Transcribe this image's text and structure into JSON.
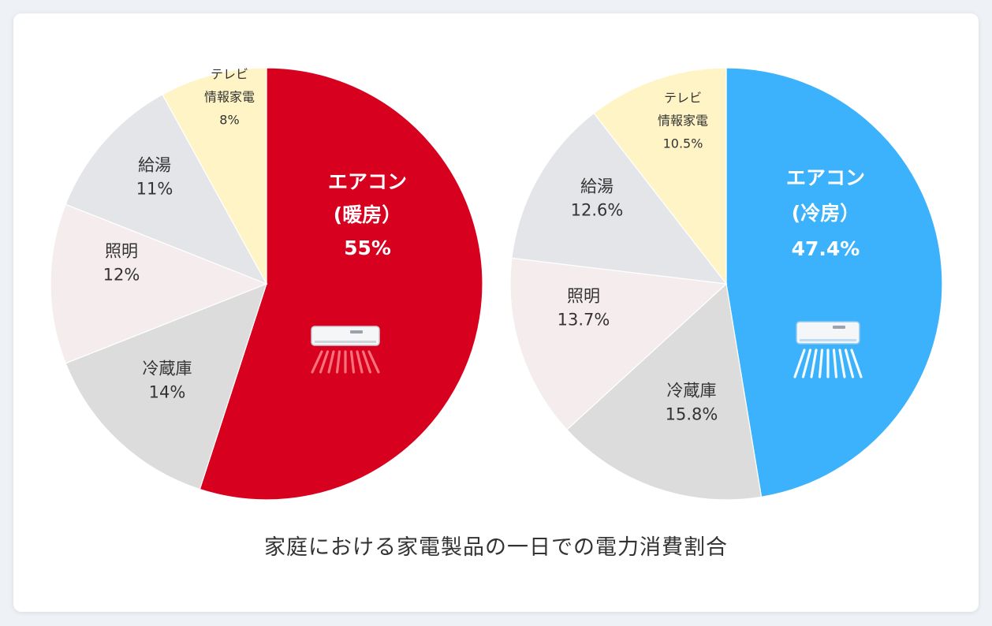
{
  "caption": "家庭における家電製品の一日での電力消費割合",
  "chart_data": [
    {
      "type": "pie",
      "categories": [
        "エアコン（暖房）",
        "冷蔵庫",
        "照明",
        "給湯",
        "テレビ 情報家電"
      ],
      "values": [
        55,
        14,
        12,
        11,
        8
      ],
      "labels": [
        {
          "lines": [
            "エアコン",
            "(暖房）",
            "55%"
          ]
        },
        {
          "lines": [
            "冷蔵庫",
            "14%"
          ]
        },
        {
          "lines": [
            "照明",
            "12%"
          ]
        },
        {
          "lines": [
            "給湯",
            "11%"
          ]
        },
        {
          "lines": [
            "テレビ",
            "情報家電",
            "8%"
          ]
        }
      ],
      "colors": [
        "#d7001e",
        "#dcdcdc",
        "#f5eded",
        "#e4e5e8",
        "#fff4c5"
      ],
      "icon": "heater-ac-icon"
    },
    {
      "type": "pie",
      "categories": [
        "エアコン（冷房）",
        "冷蔵庫",
        "照明",
        "給湯",
        "テレビ 情報家電"
      ],
      "values": [
        47.4,
        15.8,
        13.7,
        12.6,
        10.5
      ],
      "labels": [
        {
          "lines": [
            "エアコン",
            "(冷房）",
            "47.4%"
          ]
        },
        {
          "lines": [
            "冷蔵庫",
            "15.8%"
          ]
        },
        {
          "lines": [
            "照明",
            "13.7%"
          ]
        },
        {
          "lines": [
            "給湯",
            "12.6%"
          ]
        },
        {
          "lines": [
            "テレビ",
            "情報家電",
            "10.5%"
          ]
        }
      ],
      "colors": [
        "#3bb2fb",
        "#dcdcdc",
        "#f5eded",
        "#e4e5e8",
        "#fff4c5"
      ],
      "icon": "cooler-ac-icon"
    }
  ]
}
